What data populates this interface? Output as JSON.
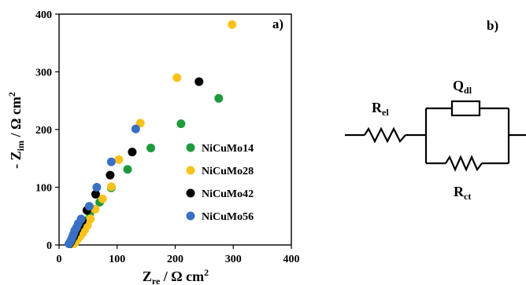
{
  "chart_data": {
    "type": "scatter",
    "panel_label": "a)",
    "xlabel": {
      "main": "Z",
      "sub": "re",
      "rest": " / Ω cm",
      "sup": "2"
    },
    "ylabel": {
      "main": "- Z",
      "sub": "im",
      "rest": " / Ω cm",
      "sup": "2"
    },
    "xlim": [
      0,
      400
    ],
    "ylim": [
      0,
      400
    ],
    "xticks": [
      0,
      100,
      200,
      300,
      400
    ],
    "yticks": [
      0,
      100,
      200,
      300,
      400
    ],
    "grid": false,
    "legend_position": "right",
    "series": [
      {
        "name": "NiCuMo14",
        "color": "#1e9a3c",
        "points": [
          [
            20,
            2
          ],
          [
            22,
            6
          ],
          [
            25,
            10
          ],
          [
            28,
            15
          ],
          [
            31,
            20
          ],
          [
            35,
            28
          ],
          [
            40,
            35
          ],
          [
            46,
            42
          ],
          [
            53,
            55
          ],
          [
            70,
            74
          ],
          [
            90,
            99
          ],
          [
            118,
            131
          ],
          [
            158,
            168
          ],
          [
            210,
            210
          ],
          [
            275,
            254
          ]
        ]
      },
      {
        "name": "NiCuMo28",
        "color": "#f8c21c",
        "points": [
          [
            25,
            2
          ],
          [
            28,
            5
          ],
          [
            32,
            10
          ],
          [
            36,
            15
          ],
          [
            40,
            20
          ],
          [
            44,
            26
          ],
          [
            49,
            34
          ],
          [
            54,
            45
          ],
          [
            62,
            62
          ],
          [
            75,
            80
          ],
          [
            90,
            101
          ],
          [
            103,
            148
          ],
          [
            140,
            211
          ],
          [
            203,
            290
          ],
          [
            298,
            382
          ]
        ]
      },
      {
        "name": "NiCuMo42",
        "color": "#000000",
        "points": [
          [
            18,
            2
          ],
          [
            20,
            5
          ],
          [
            22,
            9
          ],
          [
            25,
            14
          ],
          [
            28,
            20
          ],
          [
            31,
            27
          ],
          [
            35,
            34
          ],
          [
            40,
            42
          ],
          [
            48,
            60
          ],
          [
            63,
            88
          ],
          [
            88,
            121
          ],
          [
            126,
            161
          ],
          [
            241,
            283
          ]
        ]
      },
      {
        "name": "NiCuMo56",
        "color": "#3a70c4",
        "points": [
          [
            17,
            2
          ],
          [
            19,
            5
          ],
          [
            21,
            9
          ],
          [
            23,
            14
          ],
          [
            25,
            19
          ],
          [
            27,
            25
          ],
          [
            30,
            30
          ],
          [
            33,
            37
          ],
          [
            38,
            45
          ],
          [
            52,
            67
          ],
          [
            65,
            100
          ],
          [
            90,
            144
          ],
          [
            132,
            201
          ]
        ]
      }
    ]
  },
  "circuit": {
    "panel_label": "b)",
    "r_el": {
      "main": "R",
      "sub": "el"
    },
    "q_dl": {
      "main": "Q",
      "sub": "dl"
    },
    "r_ct": {
      "main": "R",
      "sub": "ct"
    }
  }
}
